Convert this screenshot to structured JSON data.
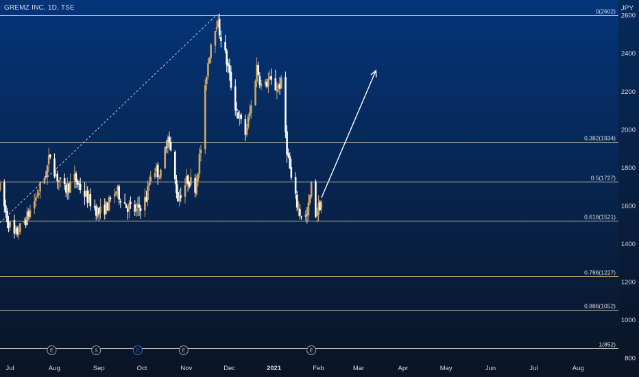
{
  "header": {
    "ticker": "GREMZ INC, 1D, TSE",
    "unit": "JPY"
  },
  "colors": {
    "bg_top": "#043579",
    "bg_bottom": "#0b1424",
    "candle_up": "#cfa76a",
    "candle_down": "#ffffff",
    "fib_line": "#d9d4c2",
    "fib_line_786": "#d8b372",
    "axis_text": "#d8dde6",
    "arrow": "#ffffff"
  },
  "chart_data": {
    "type": "candlestick",
    "x_axis": {
      "range": [
        "2020-06-26",
        "2021-08-31"
      ],
      "ticks": [
        {
          "date": "2020-07-01",
          "label": "Jul"
        },
        {
          "date": "2020-08-01",
          "label": "Aug"
        },
        {
          "date": "2020-09-01",
          "label": "Sep"
        },
        {
          "date": "2020-10-01",
          "label": "Oct"
        },
        {
          "date": "2020-11-01",
          "label": "Nov"
        },
        {
          "date": "2020-12-01",
          "label": "Dec"
        },
        {
          "date": "2021-01-01",
          "label": "2021"
        },
        {
          "date": "2021-02-01",
          "label": "Feb"
        },
        {
          "date": "2021-03-01",
          "label": "Mar"
        },
        {
          "date": "2021-04-01",
          "label": "Apr"
        },
        {
          "date": "2021-05-01",
          "label": "May"
        },
        {
          "date": "2021-06-01",
          "label": "Jun"
        },
        {
          "date": "2021-07-01",
          "label": "Jul"
        },
        {
          "date": "2021-08-01",
          "label": "Aug"
        }
      ]
    },
    "y_axis": {
      "range": [
        800,
        2680
      ],
      "ticks": [
        {
          "value": 800,
          "label": "800"
        },
        {
          "value": 1000,
          "label": "1000"
        },
        {
          "value": 1200,
          "label": "1200"
        },
        {
          "value": 1400,
          "label": "1400"
        },
        {
          "value": 1600,
          "label": "1600"
        },
        {
          "value": 1800,
          "label": "1800"
        },
        {
          "value": 2000,
          "label": "2000"
        },
        {
          "value": 2200,
          "label": "2200"
        },
        {
          "value": 2400,
          "label": "2400"
        },
        {
          "value": 2600,
          "label": "2600"
        }
      ]
    },
    "fib_levels": [
      {
        "value": 2602,
        "label": "0(2602)"
      },
      {
        "value": 1934,
        "label": "0.382(1934)"
      },
      {
        "value": 1727,
        "label": "0.5(1727)"
      },
      {
        "value": 1521,
        "label": "0.618(1521)"
      },
      {
        "value": 1227,
        "label": "0.786(1227)"
      },
      {
        "value": 1052,
        "label": "0.886(1052)"
      },
      {
        "value": 852,
        "label": "1(852)"
      }
    ],
    "trend_line": {
      "from": [
        "2020-06-26",
        1510
      ],
      "to": [
        "2020-11-24",
        2602
      ]
    },
    "projection_arrow": {
      "from": [
        "2021-02-05",
        1640
      ],
      "to": [
        "2021-03-15",
        2310
      ]
    },
    "event_markers": [
      {
        "date": "2020-08-01",
        "label": "E"
      },
      {
        "date": "2020-09-01",
        "label": "S"
      },
      {
        "date": "2020-09-30",
        "label": "D"
      },
      {
        "date": "2020-11-01",
        "label": "E"
      },
      {
        "date": "2021-01-29",
        "label": "E"
      }
    ],
    "price_path": [
      [
        "2020-06-26",
        1690
      ],
      [
        "2020-07-01",
        1530
      ],
      [
        "2020-07-06",
        1440
      ],
      [
        "2020-07-10",
        1480
      ],
      [
        "2020-07-15",
        1540
      ],
      [
        "2020-07-22",
        1660
      ],
      [
        "2020-07-28",
        1770
      ],
      [
        "2020-07-31",
        1870
      ],
      [
        "2020-08-04",
        1760
      ],
      [
        "2020-08-10",
        1680
      ],
      [
        "2020-08-17",
        1740
      ],
      [
        "2020-08-24",
        1660
      ],
      [
        "2020-08-28",
        1620
      ],
      [
        "2020-09-03",
        1560
      ],
      [
        "2020-09-09",
        1600
      ],
      [
        "2020-09-15",
        1680
      ],
      [
        "2020-09-22",
        1600
      ],
      [
        "2020-09-29",
        1570
      ],
      [
        "2020-10-06",
        1640
      ],
      [
        "2020-10-10",
        1810
      ],
      [
        "2020-10-16",
        1760
      ],
      [
        "2020-10-21",
        1980
      ],
      [
        "2020-10-24",
        1820
      ],
      [
        "2020-10-28",
        1640
      ],
      [
        "2020-11-04",
        1740
      ],
      [
        "2020-11-09",
        1700
      ],
      [
        "2020-11-13",
        1900
      ],
      [
        "2020-11-17",
        2300
      ],
      [
        "2020-11-21",
        2510
      ],
      [
        "2020-11-24",
        2570
      ],
      [
        "2020-11-28",
        2460
      ],
      [
        "2020-12-02",
        2320
      ],
      [
        "2020-12-06",
        2150
      ],
      [
        "2020-12-10",
        2050
      ],
      [
        "2020-12-14",
        1980
      ],
      [
        "2020-12-18",
        2120
      ],
      [
        "2020-12-22",
        2330
      ],
      [
        "2020-12-26",
        2200
      ],
      [
        "2020-12-30",
        2260
      ],
      [
        "2021-01-04",
        2220
      ],
      [
        "2021-01-08",
        2240
      ],
      [
        "2021-01-12",
        1900
      ],
      [
        "2021-01-16",
        1680
      ],
      [
        "2021-01-21",
        1560
      ],
      [
        "2021-01-26",
        1540
      ],
      [
        "2021-01-29",
        1700
      ],
      [
        "2021-02-01",
        1560
      ],
      [
        "2021-02-05",
        1620
      ]
    ]
  }
}
